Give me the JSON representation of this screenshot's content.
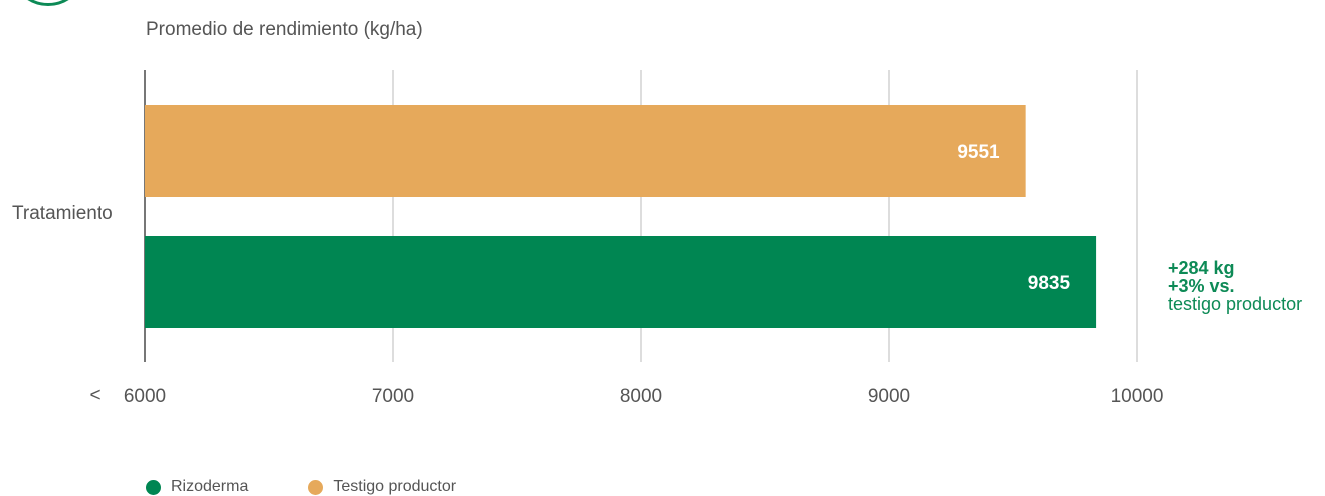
{
  "chart_data": {
    "type": "bar",
    "orientation": "horizontal",
    "title": "Promedio de rendimiento (kg/ha)",
    "category_label": "Tratamiento",
    "xlim": [
      6000,
      10000
    ],
    "x_ticks": [
      6000,
      7000,
      8000,
      9000,
      10000
    ],
    "x_axis_prefix": "<",
    "grid": true,
    "series": [
      {
        "name": "Testigo productor",
        "value": 9551,
        "color": "#e6a95b"
      },
      {
        "name": "Rizoderma",
        "value": 9835,
        "color": "#008652"
      }
    ],
    "annotation": {
      "line1": "+284 kg",
      "line2": "+3% vs.",
      "line3": "testigo productor",
      "color": "#0d8a56"
    },
    "legend": [
      {
        "label": "Rizoderma",
        "color": "#008652"
      },
      {
        "label": "Testigo productor",
        "color": "#e6a95b"
      }
    ],
    "legend_position": "bottom-left"
  }
}
